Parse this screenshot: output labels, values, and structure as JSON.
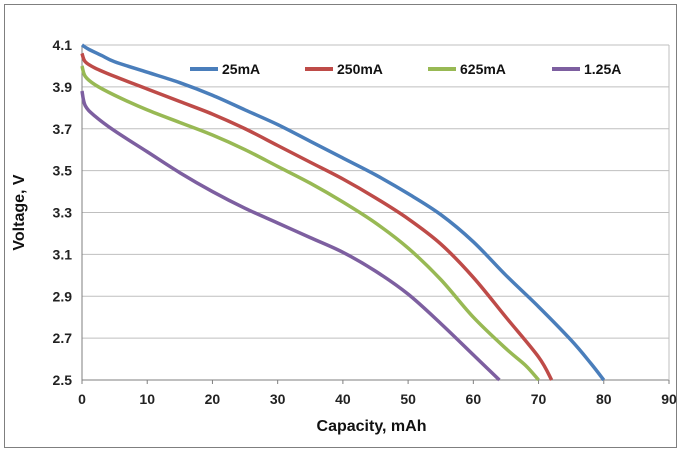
{
  "chart_data": {
    "type": "line",
    "xlabel": "Capacity, mAh",
    "ylabel": "Voltage, V",
    "xlim": [
      0,
      90
    ],
    "ylim": [
      2.5,
      4.1
    ],
    "xticks": [
      "0",
      "10",
      "20",
      "30",
      "40",
      "50",
      "60",
      "70",
      "80",
      "90"
    ],
    "yticks": [
      "2.5",
      "2.7",
      "2.9",
      "3.1",
      "3.3",
      "3.5",
      "3.7",
      "3.9",
      "4.1"
    ],
    "grid": "horizontal",
    "legend_position": "top",
    "series": [
      {
        "name": "25mA",
        "color": "#4a7ebb",
        "x": [
          0,
          1,
          3,
          5,
          10,
          15,
          20,
          25,
          30,
          35,
          40,
          45,
          50,
          55,
          60,
          65,
          70,
          75,
          78,
          80
        ],
        "y": [
          4.1,
          4.08,
          4.05,
          4.02,
          3.97,
          3.92,
          3.86,
          3.79,
          3.72,
          3.64,
          3.56,
          3.48,
          3.39,
          3.29,
          3.16,
          3.0,
          2.85,
          2.69,
          2.58,
          2.5
        ]
      },
      {
        "name": "250mA",
        "color": "#be4b48",
        "x": [
          0,
          0.5,
          2,
          5,
          10,
          15,
          20,
          25,
          30,
          35,
          40,
          45,
          50,
          55,
          60,
          65,
          70,
          72
        ],
        "y": [
          4.06,
          4.02,
          3.99,
          3.95,
          3.89,
          3.83,
          3.77,
          3.7,
          3.62,
          3.54,
          3.46,
          3.37,
          3.27,
          3.15,
          2.99,
          2.8,
          2.61,
          2.5
        ]
      },
      {
        "name": "625mA",
        "color": "#98b954",
        "x": [
          0,
          0.5,
          2,
          5,
          10,
          15,
          20,
          25,
          30,
          35,
          40,
          45,
          50,
          55,
          60,
          65,
          68,
          70
        ],
        "y": [
          4.0,
          3.95,
          3.91,
          3.86,
          3.79,
          3.73,
          3.67,
          3.6,
          3.52,
          3.44,
          3.35,
          3.25,
          3.13,
          2.98,
          2.8,
          2.65,
          2.57,
          2.5
        ]
      },
      {
        "name": "1.25A",
        "color": "#7d5fa0",
        "x": [
          0,
          0.5,
          2,
          5,
          10,
          15,
          20,
          25,
          30,
          35,
          40,
          45,
          50,
          55,
          60,
          64
        ],
        "y": [
          3.88,
          3.81,
          3.76,
          3.69,
          3.59,
          3.49,
          3.4,
          3.32,
          3.25,
          3.18,
          3.11,
          3.02,
          2.91,
          2.77,
          2.62,
          2.5
        ]
      }
    ]
  }
}
